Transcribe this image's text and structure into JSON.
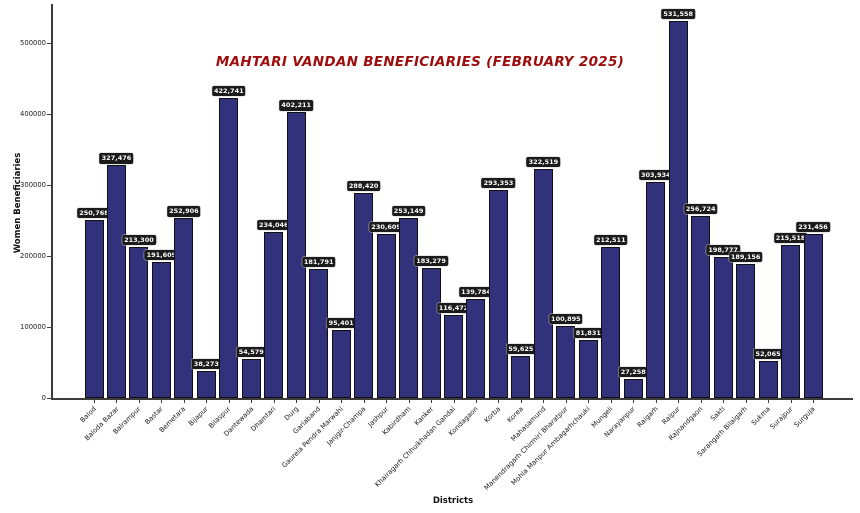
{
  "chart_data": {
    "type": "bar",
    "title": "MAHTARI VANDAN BENEFICIARIES (FEBRUARY 2025)",
    "xlabel": "Districts",
    "ylabel": "Women Beneficiaries",
    "ylim": [
      0,
      550000
    ],
    "grid": false,
    "legend": "none",
    "ytick_labels": [
      "0",
      "100000",
      "200000",
      "300000",
      "400000",
      "500000"
    ],
    "yticks": [
      0,
      100000,
      200000,
      300000,
      400000,
      500000
    ],
    "categories": [
      "Balod",
      "Baloda Bazar",
      "Balrampur",
      "Bastar",
      "Bemetara",
      "Bijapur",
      "Bilaspur",
      "Dantewada",
      "Dhamtari",
      "Durg",
      "Gariaband",
      "Gaurela Pendra Marwahi",
      "Janjgir-Champa",
      "Jashpur",
      "Kabirdham",
      "Kanker",
      "Khairagarh Chhuikhadan Gandai",
      "Kondagaon",
      "Korba",
      "Korea",
      "Mahasamund",
      "Manendragarh Chirmiri Bharatpur",
      "Mohla Manpur Ambagarhchauki",
      "Mungeli",
      "Narayanpur",
      "Raigarh",
      "Raipur",
      "Rajnandgaon",
      "Sakti",
      "Sarangarh Bilaigarh",
      "Sukma",
      "Surajpur",
      "Surguja"
    ],
    "values": [
      250768,
      327476,
      213300,
      191609,
      252906,
      38273,
      422741,
      54579,
      234046,
      402211,
      181791,
      95401,
      288420,
      230609,
      253149,
      183279,
      116472,
      139784,
      293353,
      59625,
      322519,
      100895,
      81831,
      212511,
      27258,
      303934,
      531558,
      256724,
      198777,
      189156,
      52065,
      215518,
      231456
    ],
    "value_labels": [
      "250,768",
      "327,476",
      "213,300",
      "191,609",
      "252,906",
      "38,273",
      "422,741",
      "54,579",
      "234,046",
      "402,211",
      "181,791",
      "95,401",
      "288,420",
      "230,609",
      "253,149",
      "183,279",
      "116,472",
      "139,784",
      "293,353",
      "59,625",
      "322,519",
      "100,895",
      "81,831",
      "212,511",
      "27,258",
      "303,934",
      "531,558",
      "256,724",
      "198,777",
      "189,156",
      "52,065",
      "215,518",
      "231,456"
    ],
    "colors": {
      "bar_fill": "#31317c",
      "bar_edge": "#101010",
      "title": "#9d0d0d",
      "value_label_bg": "#1b1b1b",
      "value_label_text": "#ffffff",
      "axis": "#3c3c3c"
    }
  }
}
